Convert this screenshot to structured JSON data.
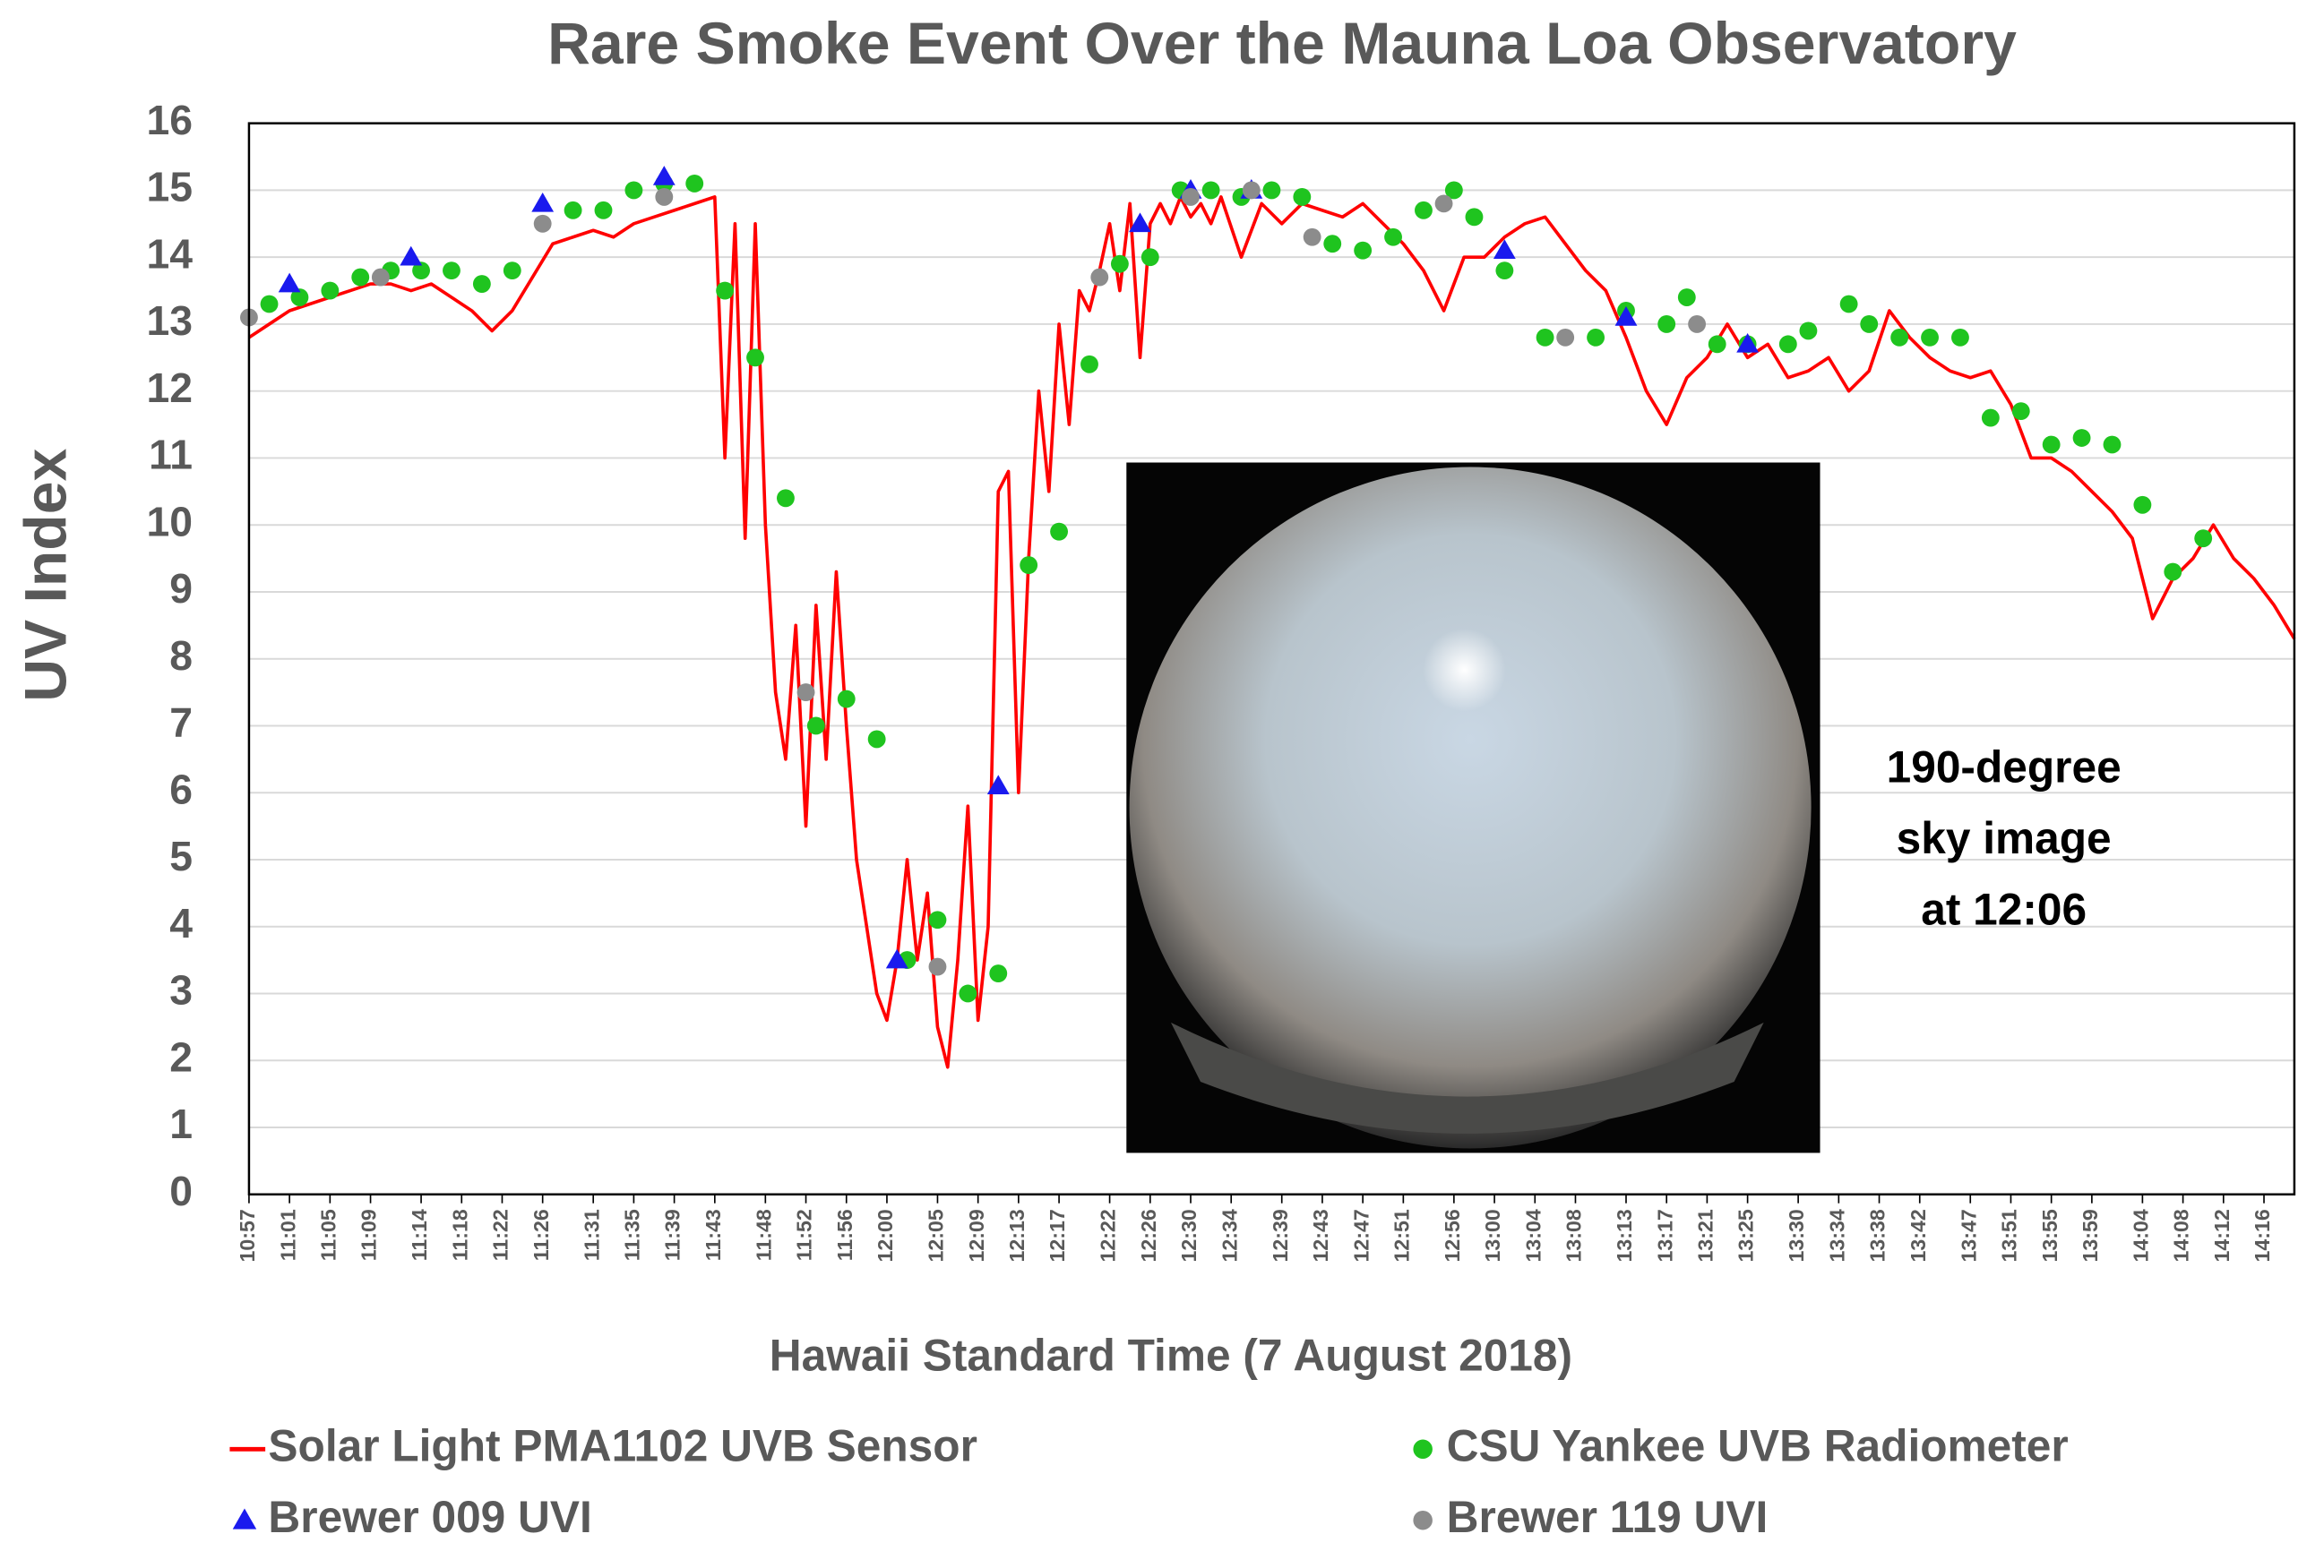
{
  "chart_data": {
    "type": "line",
    "title": "Rare Smoke Event Over the Mauna Loa Observatory",
    "xlabel": "Hawaii Standard Time (7 August 2018)",
    "ylabel": "UV Index",
    "annotation": [
      "190-degree",
      "sky image",
      "at 12:06"
    ],
    "xlim": [
      "10:57",
      "14:19"
    ],
    "ylim": [
      0,
      16
    ],
    "yticks": [
      0,
      1,
      2,
      3,
      4,
      5,
      6,
      7,
      8,
      9,
      10,
      11,
      12,
      13,
      14,
      15,
      16
    ],
    "xticks": [
      "10:57",
      "11:01",
      "11:05",
      "11:09",
      "11:14",
      "11:18",
      "11:22",
      "11:26",
      "11:31",
      "11:35",
      "11:39",
      "11:43",
      "11:48",
      "11:52",
      "11:56",
      "12:00",
      "12:05",
      "12:09",
      "12:13",
      "12:17",
      "12:22",
      "12:26",
      "12:30",
      "12:34",
      "12:39",
      "12:43",
      "12:47",
      "12:51",
      "12:56",
      "13:00",
      "13:04",
      "13:08",
      "13:13",
      "13:17",
      "13:21",
      "13:25",
      "13:30",
      "13:34",
      "13:38",
      "13:42",
      "13:47",
      "13:51",
      "13:55",
      "13:59",
      "14:04",
      "14:08",
      "14:12",
      "14:16"
    ],
    "grid": true,
    "series": [
      {
        "name": "Solar Light PMA1102 UVB Sensor",
        "color": "#ff0000",
        "marker": "line",
        "x": [
          "10:57",
          "10:59",
          "11:01",
          "11:03",
          "11:05",
          "11:07",
          "11:09",
          "11:11",
          "11:13",
          "11:15",
          "11:17",
          "11:19",
          "11:21",
          "11:23",
          "11:25",
          "11:27",
          "11:29",
          "11:31",
          "11:33",
          "11:35",
          "11:37",
          "11:39",
          "11:41",
          "11:43",
          "11:44",
          "11:45",
          "11:46",
          "11:47",
          "11:48",
          "11:49",
          "11:50",
          "11:51",
          "11:52",
          "11:53",
          "11:54",
          "11:55",
          "11:56",
          "11:57",
          "11:58",
          "11:59",
          "12:00",
          "12:01",
          "12:02",
          "12:03",
          "12:04",
          "12:05",
          "12:06",
          "12:07",
          "12:08",
          "12:09",
          "12:10",
          "12:11",
          "12:12",
          "12:13",
          "12:14",
          "12:15",
          "12:16",
          "12:17",
          "12:18",
          "12:19",
          "12:20",
          "12:21",
          "12:22",
          "12:23",
          "12:24",
          "12:25",
          "12:26",
          "12:27",
          "12:28",
          "12:29",
          "12:30",
          "12:31",
          "12:32",
          "12:33",
          "12:35",
          "12:37",
          "12:39",
          "12:41",
          "12:43",
          "12:45",
          "12:47",
          "12:49",
          "12:51",
          "12:53",
          "12:55",
          "12:57",
          "12:59",
          "13:01",
          "13:03",
          "13:05",
          "13:07",
          "13:09",
          "13:11",
          "13:13",
          "13:15",
          "13:17",
          "13:19",
          "13:21",
          "13:23",
          "13:25",
          "13:27",
          "13:29",
          "13:31",
          "13:33",
          "13:35",
          "13:37",
          "13:39",
          "13:41",
          "13:43",
          "13:45",
          "13:47",
          "13:49",
          "13:51",
          "13:53",
          "13:55",
          "13:57",
          "13:59",
          "14:01",
          "14:03",
          "14:05",
          "14:07",
          "14:09",
          "14:11",
          "14:13",
          "14:15",
          "14:17",
          "14:19"
        ],
        "values": [
          12.8,
          13.0,
          13.2,
          13.3,
          13.4,
          13.5,
          13.6,
          13.6,
          13.5,
          13.6,
          13.4,
          13.2,
          12.9,
          13.2,
          13.7,
          14.2,
          14.3,
          14.4,
          14.3,
          14.5,
          14.6,
          14.7,
          14.8,
          14.9,
          11.0,
          14.5,
          9.8,
          14.5,
          10.0,
          7.5,
          6.5,
          8.5,
          5.5,
          8.8,
          6.5,
          9.3,
          7.0,
          5.0,
          4.0,
          3.0,
          2.6,
          3.5,
          5.0,
          3.5,
          4.5,
          2.5,
          1.9,
          3.5,
          5.8,
          2.6,
          4.0,
          10.5,
          10.8,
          6.0,
          9.5,
          12.0,
          10.5,
          13.0,
          11.5,
          13.5,
          13.2,
          13.8,
          14.5,
          13.5,
          14.8,
          12.5,
          14.5,
          14.8,
          14.5,
          14.9,
          14.6,
          14.8,
          14.5,
          14.9,
          14.0,
          14.8,
          14.5,
          14.8,
          14.7,
          14.6,
          14.8,
          14.5,
          14.2,
          13.8,
          13.2,
          14.0,
          14.0,
          14.3,
          14.5,
          14.6,
          14.2,
          13.8,
          13.5,
          12.8,
          12.0,
          11.5,
          12.2,
          12.5,
          13.0,
          12.5,
          12.7,
          12.2,
          12.3,
          12.5,
          12.0,
          12.3,
          13.2,
          12.8,
          12.5,
          12.3,
          12.2,
          12.3,
          11.8,
          11.0,
          11.0,
          10.8,
          10.5,
          10.2,
          9.8,
          8.6,
          9.2,
          9.5,
          10.0,
          9.5,
          9.2,
          8.8,
          8.3
        ]
      },
      {
        "name": "CSU Yankee UVB Radiometer",
        "color": "#1fc41f",
        "marker": "circle",
        "x": [
          "10:59",
          "11:02",
          "11:05",
          "11:08",
          "11:11",
          "11:14",
          "11:17",
          "11:20",
          "11:23",
          "11:29",
          "11:32",
          "11:35",
          "11:38",
          "11:41",
          "11:44",
          "11:47",
          "11:50",
          "11:53",
          "11:56",
          "11:59",
          "12:02",
          "12:05",
          "12:08",
          "12:11",
          "12:14",
          "12:17",
          "12:20",
          "12:23",
          "12:26",
          "12:29",
          "12:32",
          "12:35",
          "12:38",
          "12:41",
          "12:44",
          "12:47",
          "12:50",
          "12:53",
          "12:56",
          "12:58",
          "13:01",
          "13:05",
          "13:10",
          "13:13",
          "13:17",
          "13:19",
          "13:22",
          "13:25",
          "13:29",
          "13:31",
          "13:35",
          "13:37",
          "13:40",
          "13:43",
          "13:46",
          "13:49",
          "13:52",
          "13:55",
          "13:58",
          "14:01",
          "14:04",
          "14:07",
          "14:10"
        ],
        "values": [
          13.3,
          13.4,
          13.5,
          13.7,
          13.8,
          13.8,
          13.8,
          13.6,
          13.8,
          14.7,
          14.7,
          15.0,
          15.1,
          15.1,
          13.5,
          12.5,
          10.4,
          7.0,
          7.4,
          6.8,
          3.5,
          4.1,
          3.0,
          3.3,
          9.4,
          9.9,
          12.4,
          13.9,
          14.0,
          15.0,
          15.0,
          14.9,
          15.0,
          14.9,
          14.2,
          14.1,
          14.3,
          14.7,
          15.0,
          14.6,
          13.8,
          12.8,
          12.8,
          13.2,
          13.0,
          13.4,
          12.7,
          12.7,
          12.7,
          12.9,
          13.3,
          13.0,
          12.8,
          12.8,
          12.8,
          11.6,
          11.7,
          11.2,
          11.3,
          11.2,
          10.3,
          9.3,
          9.8
        ]
      },
      {
        "name": "Brewer 009 UVI",
        "color": "#1a1aee",
        "marker": "triangle",
        "x": [
          "11:01",
          "11:13",
          "11:26",
          "11:38",
          "12:01",
          "12:11",
          "12:25",
          "12:30",
          "12:36",
          "13:01",
          "13:13",
          "13:25"
        ],
        "values": [
          13.6,
          14.0,
          14.8,
          15.2,
          3.5,
          6.1,
          14.5,
          15.0,
          15.0,
          14.1,
          13.1,
          12.7
        ]
      },
      {
        "name": "Brewer 119 UVI",
        "color": "#8c8c8c",
        "marker": "circle",
        "x": [
          "10:57",
          "11:10",
          "11:26",
          "11:38",
          "11:52",
          "12:05",
          "12:21",
          "12:30",
          "12:36",
          "12:42",
          "12:55",
          "13:07",
          "13:20"
        ],
        "values": [
          13.1,
          13.7,
          14.5,
          14.9,
          7.5,
          3.4,
          13.7,
          14.9,
          15.0,
          14.3,
          14.8,
          12.8,
          13.0
        ]
      }
    ]
  }
}
